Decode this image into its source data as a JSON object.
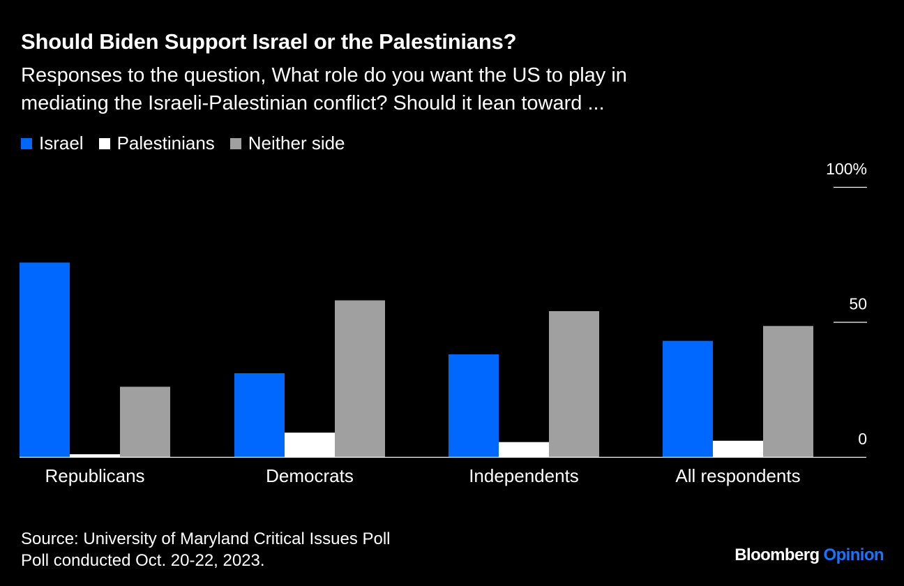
{
  "title": "Should Biden Support Israel or the Palestinians?",
  "subtitle_line1": "Responses to the question, What role do you want the US to play in",
  "subtitle_line2": "mediating the Israeli-Palestinian conflict? Should it lean toward ...",
  "legend": [
    {
      "label": "Israel",
      "color": "#0068ff"
    },
    {
      "label": "Palestinians",
      "color": "#ffffff"
    },
    {
      "label": "Neither side",
      "color": "#a0a0a0"
    }
  ],
  "chart_data": {
    "type": "bar",
    "title": "Should Biden Support Israel or the Palestinians?",
    "categories": [
      "Republicans",
      "Democrats",
      "Independents",
      "All respondents"
    ],
    "series": [
      {
        "name": "Israel",
        "color": "#0068ff",
        "values": [
          72,
          31,
          38,
          43
        ]
      },
      {
        "name": "Palestinians",
        "color": "#ffffff",
        "values": [
          1,
          9,
          5.5,
          6
        ]
      },
      {
        "name": "Neither side",
        "color": "#a0a0a0",
        "values": [
          26,
          58,
          54,
          48.5
        ]
      }
    ],
    "ylim": [
      0,
      100
    ],
    "yticks": [
      0,
      50,
      100
    ],
    "ytick_labels": [
      "0",
      "50",
      "100%"
    ],
    "xlabel": "",
    "ylabel": ""
  },
  "source_line1": "Source: University of Maryland Critical Issues Poll",
  "source_line2": "Poll conducted Oct. 20-22, 2023.",
  "brand_name": "Bloomberg",
  "brand_section": "Opinion"
}
